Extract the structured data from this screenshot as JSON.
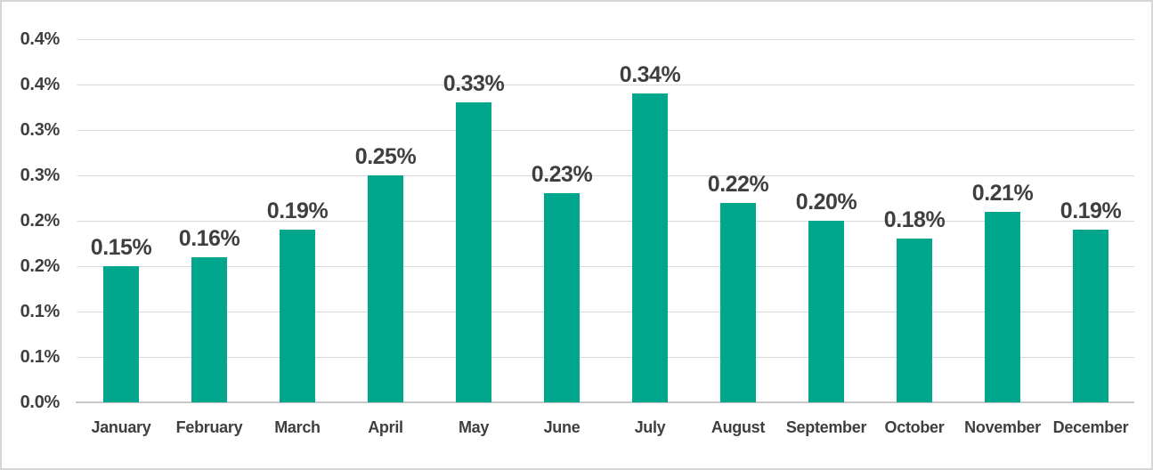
{
  "chart_data": {
    "type": "bar",
    "title": "",
    "xlabel": "",
    "ylabel": "",
    "categories": [
      "January",
      "February",
      "March",
      "April",
      "May",
      "June",
      "July",
      "August",
      "September",
      "October",
      "November",
      "December"
    ],
    "values": [
      0.15,
      0.16,
      0.19,
      0.25,
      0.33,
      0.23,
      0.34,
      0.22,
      0.2,
      0.18,
      0.21,
      0.19
    ],
    "data_labels": [
      "0.15%",
      "0.16%",
      "0.19%",
      "0.25%",
      "0.33%",
      "0.23%",
      "0.34%",
      "0.22%",
      "0.20%",
      "0.18%",
      "0.21%",
      "0.19%"
    ],
    "y_tick_labels_top_to_bottom": [
      "0.4%",
      "0.4%",
      "0.3%",
      "0.3%",
      "0.2%",
      "0.2%",
      "0.1%",
      "0.1%",
      "0.0%"
    ],
    "y_tick_values_top_to_bottom": [
      0.4,
      0.35,
      0.3,
      0.25,
      0.2,
      0.15,
      0.1,
      0.05,
      0.0
    ],
    "ylim": [
      0,
      0.4
    ],
    "grid": true,
    "legend": "none",
    "colors": {
      "bar_fill": "#00A78C",
      "gridline": "#D9D9D9",
      "axis_line": "#C7C7C7",
      "label_text": "#3F3F3F",
      "figure_border": "#D6D6D6",
      "background": "#FFFFFF"
    }
  }
}
